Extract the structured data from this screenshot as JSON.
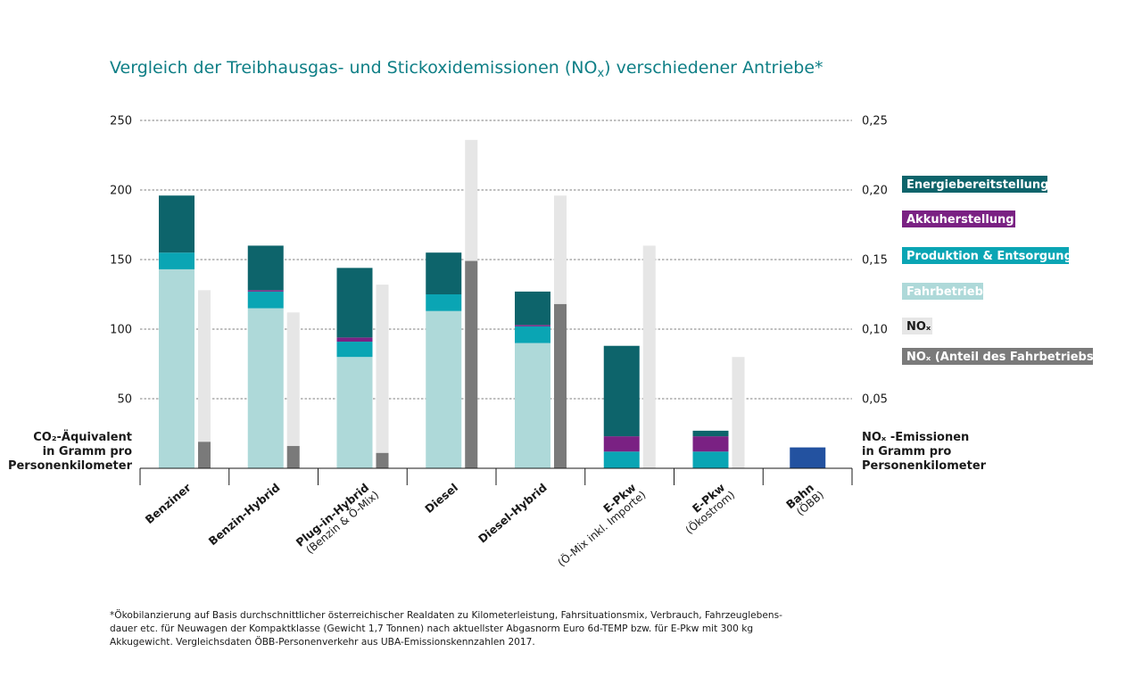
{
  "colors": {
    "energiebereitstellung": "#0d646b",
    "akkuherstellung": "#7a2183",
    "produktion": "#0aa5b4",
    "fahrbetrieb": "#aed9d9",
    "nox": "#e6e6e6",
    "nox_fahrbetrieb": "#7a7a7a",
    "bahn": "#2352a0",
    "title": "#0f7f86"
  },
  "chart_data": {
    "type": "bar",
    "title": "Vergleich der Treibhausgas- und Stickoxidemissionen (NOx) verschiedener Antriebe*",
    "left_axis": {
      "label_lines": [
        "CO₂-Äquivalent",
        "in Gramm pro",
        "Personenkilometer"
      ],
      "ylim": [
        0,
        250
      ],
      "ticks": [
        "50",
        "100",
        "150",
        "200",
        "250"
      ],
      "tick_values": [
        50,
        100,
        150,
        200,
        250
      ]
    },
    "right_axis": {
      "label_lines": [
        "NOₓ -Emissionen",
        "in Gramm pro",
        "Personenkilometer"
      ],
      "ylim": [
        0,
        0.25
      ],
      "ticks": [
        "0,05",
        "0,10",
        "0,15",
        "0,20",
        "0,25"
      ],
      "tick_values": [
        0.05,
        0.1,
        0.15,
        0.2,
        0.25
      ]
    },
    "grid": "dashed horizontal",
    "legend_position": "right",
    "categories": [
      {
        "label": "Benziner",
        "sub": ""
      },
      {
        "label": "Benzin-Hybrid",
        "sub": ""
      },
      {
        "label": "Plug-in-Hybrid",
        "sub": "(Benzin & Ö-Mix)"
      },
      {
        "label": "Diesel",
        "sub": ""
      },
      {
        "label": "Diesel-Hybrid",
        "sub": ""
      },
      {
        "label": "E-Pkw",
        "sub": "(Ö-Mix inkl. Importe)"
      },
      {
        "label": "E-Pkw",
        "sub": "(Ökostrom)"
      },
      {
        "label": "Bahn",
        "sub": "(ÖBB)"
      }
    ],
    "series": [
      {
        "name": "Fahrbetrieb",
        "color_key": "fahrbetrieb",
        "values": [
          143,
          115,
          80,
          113,
          90,
          0,
          0,
          0
        ]
      },
      {
        "name": "Produktion & Entsorgung",
        "color_key": "produktion",
        "values": [
          12,
          12,
          11,
          12,
          12,
          12,
          12,
          0
        ]
      },
      {
        "name": "Akkuherstellung",
        "color_key": "akkuherstellung",
        "values": [
          0,
          1,
          3,
          0,
          1,
          11,
          11,
          0
        ]
      },
      {
        "name": "Energiebereitstellung",
        "color_key": "energiebereitstellung",
        "values": [
          41,
          32,
          50,
          30,
          24,
          65,
          4,
          0
        ]
      },
      {
        "name": "Bahn",
        "color_key": "bahn",
        "values": [
          0,
          0,
          0,
          0,
          0,
          0,
          0,
          15
        ]
      }
    ],
    "nox_total": [
      0.128,
      0.112,
      0.132,
      0.236,
      0.196,
      0.16,
      0.08,
      null
    ],
    "nox_fahrbetrieb": [
      0.019,
      0.016,
      0.011,
      0.149,
      0.118,
      0,
      0,
      null
    ]
  },
  "legend": [
    {
      "label": "Energiebereitstellung",
      "color_key": "energiebereitstellung",
      "text": "light"
    },
    {
      "label": "Akkuherstellung",
      "color_key": "akkuherstellung",
      "text": "light"
    },
    {
      "label": "Produktion & Entsorgung",
      "color_key": "produktion",
      "text": "light"
    },
    {
      "label": "Fahrbetrieb",
      "color_key": "fahrbetrieb",
      "text": "light"
    },
    {
      "label": "NOₓ",
      "color_key": "nox",
      "text": "dark"
    },
    {
      "label": "NOₓ (Anteil des Fahrbetriebs)",
      "color_key": "nox_fahrbetrieb",
      "text": "light"
    }
  ],
  "footnote": [
    "*Ökobilanzierung auf Basis durchschnittlicher österreichischer Realdaten zu Kilometerleistung, Fahrsituationsmix, Verbrauch, Fahrzeuglebens-",
    "dauer etc. für Neuwagen der Kompaktklasse (Gewicht 1,7 Tonnen) nach aktuellster Abgasnorm Euro 6d-TEMP bzw. für E-Pkw mit 300 kg",
    "Akkugewicht. Vergleichsdaten ÖBB-Personenverkehr aus UBA-Emissionskennzahlen 2017."
  ]
}
